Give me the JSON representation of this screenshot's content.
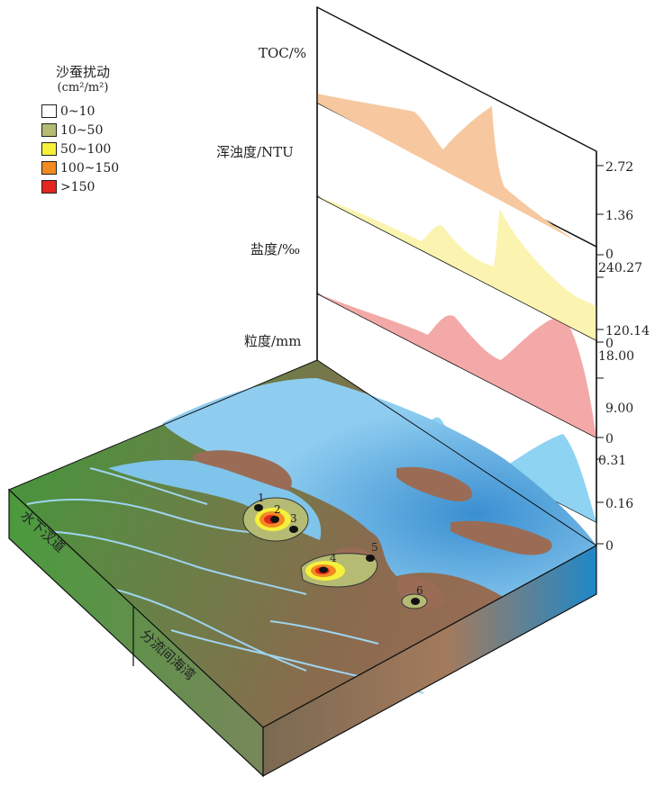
{
  "legend": {
    "title": "沙蚕扰动",
    "unit": "(cm²/m²)",
    "items": [
      {
        "label": "0~10",
        "color": "#ffffff"
      },
      {
        "label": "10~50",
        "color": "#b5bb73"
      },
      {
        "label": "50~100",
        "color": "#f6f03a"
      },
      {
        "label": "100~150",
        "color": "#f28a22"
      },
      {
        "label": ">150",
        "color": "#e3261f"
      }
    ]
  },
  "panels": [
    {
      "key": "toc",
      "label": "TOC/%",
      "color": "#f7c89f",
      "ticks": [
        "2.72",
        "1.36",
        "0"
      ]
    },
    {
      "key": "turbidity",
      "label": "浑浊度/NTU",
      "color": "#fbf4b0",
      "ticks": [
        "240.27",
        "120.14",
        "0"
      ]
    },
    {
      "key": "salinity",
      "label": "盐度/‰",
      "color": "#f3a9a7",
      "ticks": [
        "18.00",
        "9.00",
        "0"
      ]
    },
    {
      "key": "grain",
      "label": "粒度/mm",
      "color": "#8fd3f2",
      "ticks": [
        "0.31",
        "0.16",
        "0"
      ]
    }
  ],
  "block": {
    "front_left_label": "水下汊道",
    "front_right_label": "分流间海湾"
  },
  "stations": [
    "1",
    "2",
    "3",
    "4",
    "5",
    "6"
  ]
}
